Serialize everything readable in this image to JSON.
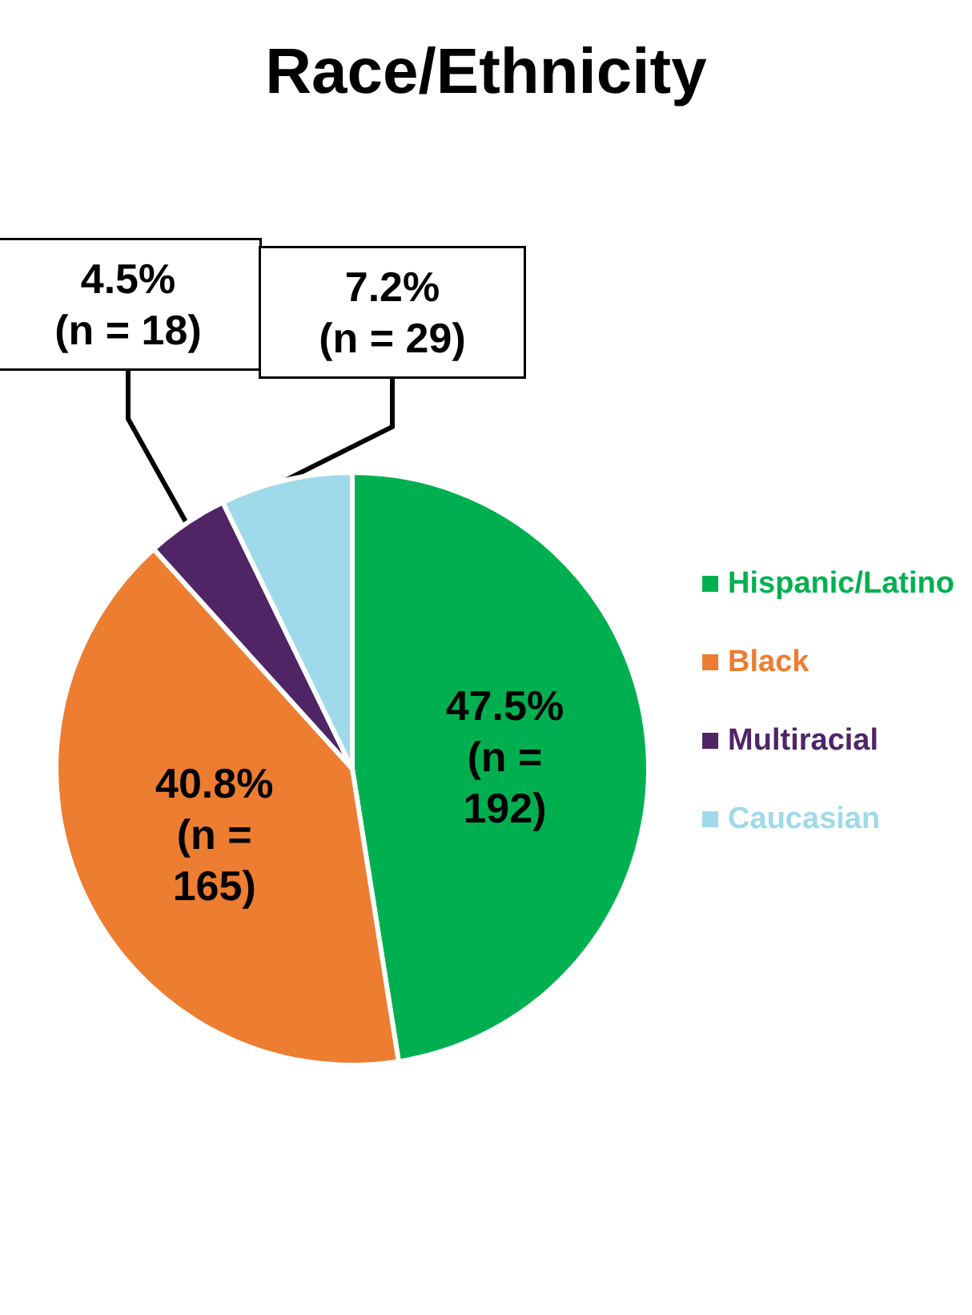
{
  "chart_data": {
    "type": "pie",
    "title": "Race/Ethnicity",
    "categories": [
      "Hispanic/Latino",
      "Black",
      "Multiracial",
      "Caucasian"
    ],
    "values": [
      47.5,
      40.8,
      4.5,
      7.2
    ],
    "colors": [
      "#00b050",
      "#ed7d31",
      "#4f2566",
      "#9fdaea"
    ],
    "value_labels": [
      "47.5% (n = 192)",
      "40.8% (n = 165)",
      "4.5% (n = 18)",
      "7.2% (n = 29)"
    ],
    "legend": "right"
  }
}
